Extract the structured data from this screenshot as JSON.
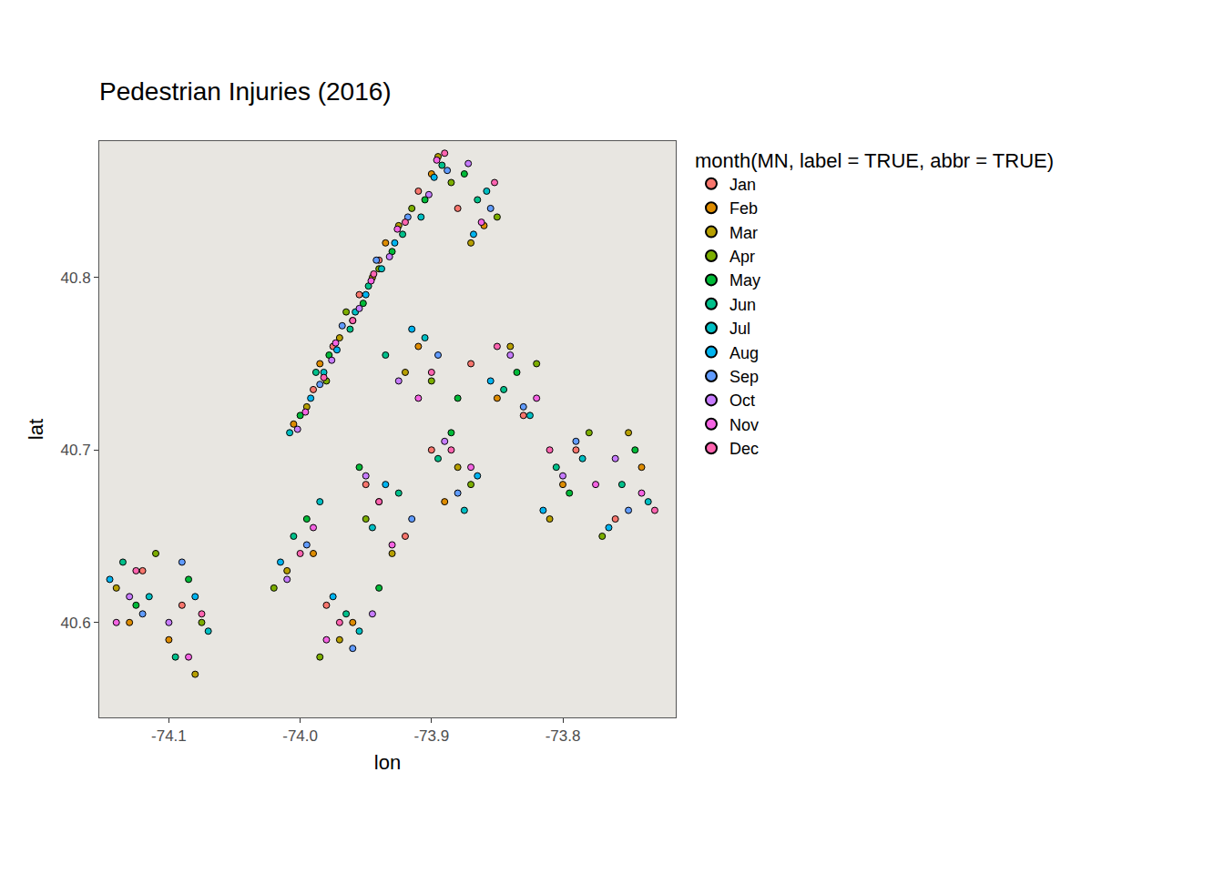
{
  "chart_data": {
    "type": "scatter",
    "title": "Pedestrian Injuries (2016)",
    "x_label": "lon",
    "y_label": "lat",
    "legend_title": "month(MN, label = TRUE, abbr = TRUE)",
    "legend": "right",
    "grid": false,
    "marker": "circle",
    "xlim": [
      -74.153,
      -73.714
    ],
    "ylim": [
      40.545,
      40.879
    ],
    "xticks": [
      -74.1,
      {
        "value": -74,
        "label": "-74.0"
      },
      -73.9,
      -73.8
    ],
    "yticks": [
      40.6,
      40.7,
      40.8
    ],
    "series": [
      {
        "name": "Jan",
        "color": "#F8766D",
        "x": [
          -73.99,
          -73.975,
          -73.955,
          -73.94,
          -73.91,
          -73.88,
          -73.95,
          -73.92,
          -73.98,
          -73.9,
          -73.83,
          -73.79,
          -73.76,
          -74.12,
          -74.09,
          -73.87
        ],
        "values": [
          40.735,
          40.76,
          40.79,
          40.81,
          40.85,
          40.84,
          40.68,
          40.65,
          40.61,
          40.7,
          40.72,
          40.7,
          40.66,
          40.63,
          40.61,
          40.75
        ]
      },
      {
        "name": "Feb",
        "color": "#DE8C00",
        "x": [
          -74.005,
          -73.985,
          -73.96,
          -73.935,
          -73.9,
          -73.86,
          -73.99,
          -73.94,
          -73.96,
          -73.89,
          -73.85,
          -73.8,
          -73.74,
          -74.13,
          -74.1,
          -73.91
        ],
        "values": [
          40.715,
          40.75,
          40.775,
          40.82,
          40.86,
          40.83,
          40.64,
          40.67,
          40.6,
          40.67,
          40.73,
          40.68,
          40.69,
          40.6,
          40.59,
          40.76
        ]
      },
      {
        "name": "Mar",
        "color": "#B79F00",
        "x": [
          -73.995,
          -73.97,
          -73.945,
          -73.925,
          -73.895,
          -73.87,
          -74.01,
          -73.93,
          -73.97,
          -73.88,
          -73.84,
          -73.81,
          -73.75,
          -74.14,
          -74.08,
          -73.92
        ],
        "values": [
          40.725,
          40.765,
          40.8,
          40.83,
          40.87,
          40.82,
          40.63,
          40.64,
          40.59,
          40.69,
          40.76,
          40.66,
          40.71,
          40.62,
          40.57,
          40.745
        ]
      },
      {
        "name": "Apr",
        "color": "#7CAE00",
        "x": [
          -73.98,
          -73.965,
          -73.94,
          -73.915,
          -73.885,
          -73.85,
          -74.02,
          -73.95,
          -73.985,
          -73.87,
          -73.82,
          -73.78,
          -73.77,
          -74.11,
          -74.075,
          -73.9
        ],
        "values": [
          40.74,
          40.78,
          40.805,
          40.84,
          40.855,
          40.835,
          40.62,
          40.66,
          40.58,
          40.68,
          40.75,
          40.71,
          40.65,
          40.64,
          40.6,
          40.74
        ]
      },
      {
        "name": "May",
        "color": "#00BA38",
        "x": [
          -74.0,
          -73.978,
          -73.952,
          -73.93,
          -73.905,
          -73.875,
          -73.995,
          -73.955,
          -73.94,
          -73.885,
          -73.835,
          -73.795,
          -73.745,
          -74.125,
          -74.085,
          -73.88
        ],
        "values": [
          40.72,
          40.755,
          40.785,
          40.815,
          40.845,
          40.86,
          40.66,
          40.69,
          40.62,
          40.71,
          40.745,
          40.675,
          40.7,
          40.61,
          40.625,
          40.73
        ]
      },
      {
        "name": "Jun",
        "color": "#00C08B",
        "x": [
          -73.988,
          -73.962,
          -73.948,
          -73.922,
          -73.892,
          -73.865,
          -74.005,
          -73.925,
          -73.965,
          -73.895,
          -73.845,
          -73.805,
          -73.755,
          -74.135,
          -74.095,
          -73.935
        ],
        "values": [
          40.745,
          40.77,
          40.795,
          40.825,
          40.865,
          40.845,
          40.65,
          40.675,
          40.605,
          40.695,
          40.735,
          40.69,
          40.68,
          40.635,
          40.58,
          40.755
        ]
      },
      {
        "name": "Jul",
        "color": "#00BFC4",
        "x": [
          -74.008,
          -73.982,
          -73.958,
          -73.938,
          -73.908,
          -73.858,
          -73.985,
          -73.945,
          -73.955,
          -73.875,
          -73.825,
          -73.785,
          -73.735,
          -74.115,
          -74.07,
          -73.905
        ],
        "values": [
          40.71,
          40.745,
          40.78,
          40.805,
          40.835,
          40.85,
          40.67,
          40.655,
          40.595,
          40.665,
          40.72,
          40.695,
          40.67,
          40.615,
          40.595,
          40.765
        ]
      },
      {
        "name": "Aug",
        "color": "#00B4F0",
        "x": [
          -73.992,
          -73.972,
          -73.95,
          -73.928,
          -73.898,
          -73.868,
          -74.015,
          -73.935,
          -73.975,
          -73.865,
          -73.855,
          -73.815,
          -73.765,
          -74.145,
          -74.08,
          -73.915
        ],
        "values": [
          40.73,
          40.758,
          40.79,
          40.82,
          40.858,
          40.825,
          40.635,
          40.68,
          40.615,
          40.685,
          40.74,
          40.665,
          40.655,
          40.625,
          40.615,
          40.77
        ]
      },
      {
        "name": "Sep",
        "color": "#619CFF",
        "x": [
          -73.985,
          -73.968,
          -73.942,
          -73.918,
          -73.888,
          -73.855,
          -73.995,
          -73.915,
          -73.96,
          -73.88,
          -73.83,
          -73.79,
          -73.75,
          -74.12,
          -74.09,
          -73.895
        ],
        "values": [
          40.738,
          40.772,
          40.81,
          40.835,
          40.862,
          40.84,
          40.645,
          40.66,
          40.585,
          40.675,
          40.725,
          40.705,
          40.665,
          40.605,
          40.635,
          40.755
        ]
      },
      {
        "name": "Oct",
        "color": "#C77CFF",
        "x": [
          -74.002,
          -73.976,
          -73.955,
          -73.932,
          -73.902,
          -73.872,
          -74.01,
          -73.95,
          -73.945,
          -73.89,
          -73.84,
          -73.8,
          -73.76,
          -74.13,
          -74.1,
          -73.925
        ],
        "values": [
          40.712,
          40.752,
          40.782,
          40.812,
          40.848,
          40.866,
          40.625,
          40.685,
          40.605,
          40.705,
          40.755,
          40.685,
          40.695,
          40.615,
          40.6,
          40.74
        ]
      },
      {
        "name": "Nov",
        "color": "#F564E3",
        "x": [
          -73.996,
          -73.973,
          -73.946,
          -73.926,
          -73.896,
          -73.862,
          -73.99,
          -73.93,
          -73.98,
          -73.87,
          -73.82,
          -73.775,
          -73.74,
          -74.14,
          -74.085,
          -73.91
        ],
        "values": [
          40.722,
          40.762,
          40.798,
          40.828,
          40.868,
          40.832,
          40.655,
          40.645,
          40.59,
          40.69,
          40.73,
          40.68,
          40.675,
          40.6,
          40.58,
          40.73
        ]
      },
      {
        "name": "Dec",
        "color": "#FF64B0",
        "x": [
          -73.982,
          -73.96,
          -73.944,
          -73.92,
          -73.89,
          -73.852,
          -74.0,
          -73.94,
          -73.97,
          -73.885,
          -73.85,
          -73.81,
          -73.73,
          -74.125,
          -74.075,
          -73.9
        ],
        "values": [
          40.742,
          40.775,
          40.802,
          40.832,
          40.872,
          40.855,
          40.64,
          40.67,
          40.6,
          40.7,
          40.76,
          40.7,
          40.665,
          40.63,
          40.605,
          40.745
        ]
      }
    ]
  }
}
